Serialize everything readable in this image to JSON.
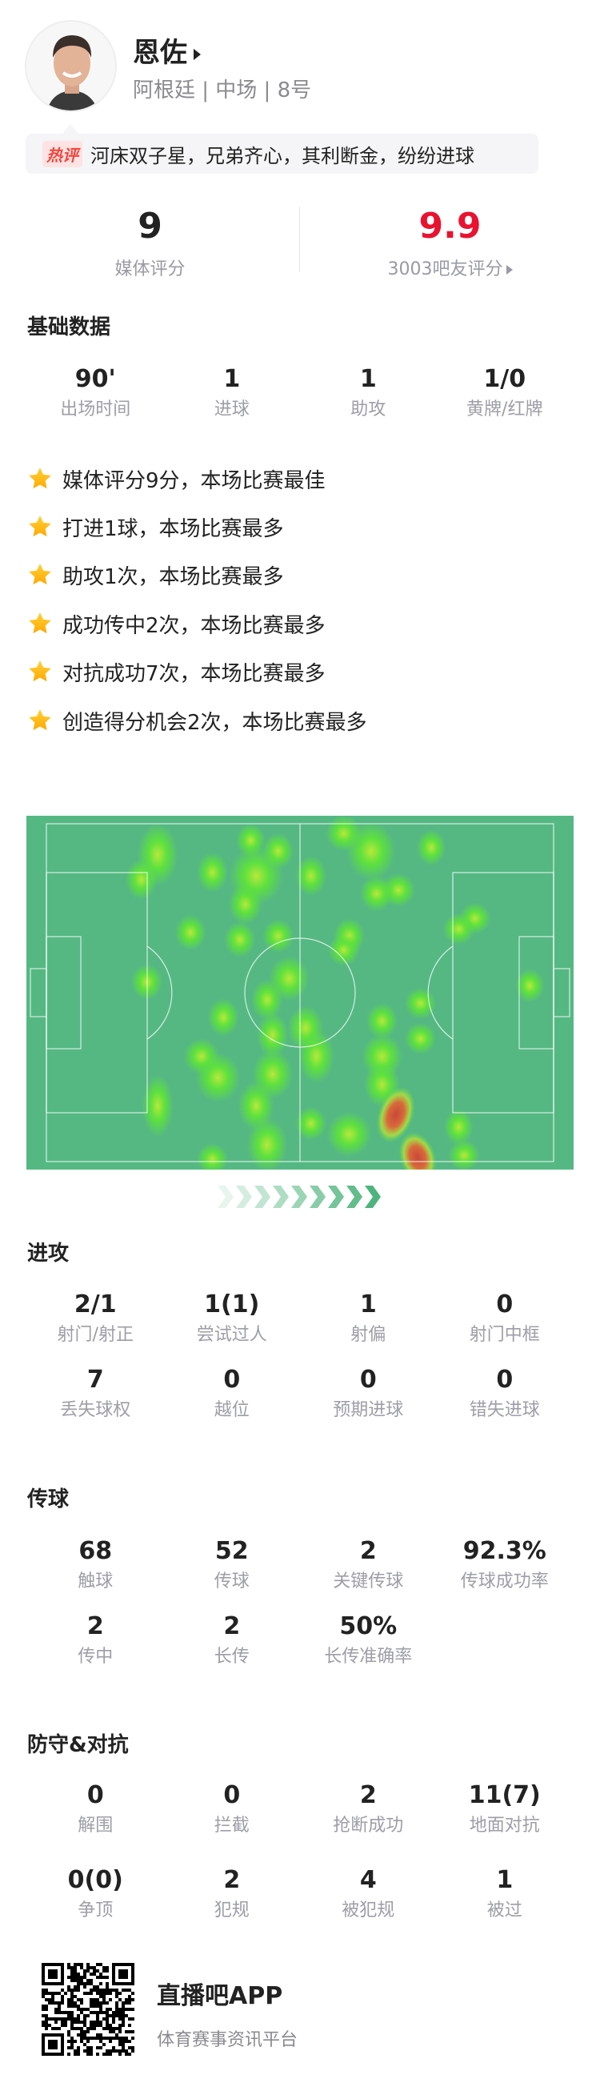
{
  "player": {
    "name": "恩佐",
    "info": "阿根廷 | 中场 | 8号"
  },
  "comment": {
    "badge": "热评",
    "text": "河床双子星，兄弟齐心，其利断金，纷纷进球"
  },
  "ratings": {
    "media_value": "9",
    "media_label": "媒体评分",
    "fan_value": "9.9",
    "fan_label": "3003吧友评分",
    "fan_color": "#e8132f"
  },
  "basic": {
    "title": "基础数据",
    "stats": [
      {
        "value": "90'",
        "label": "出场时间"
      },
      {
        "value": "1",
        "label": "进球"
      },
      {
        "value": "1",
        "label": "助攻"
      },
      {
        "value": "1/0",
        "label": "黄牌/红牌"
      }
    ]
  },
  "highlights": [
    "媒体评分9分，本场比赛最佳",
    "打进1球，本场比赛最多",
    "助攻1次，本场比赛最多",
    "成功传中2次，本场比赛最多",
    "对抗成功7次，本场比赛最多",
    "创造得分机会2次，本场比赛最多"
  ],
  "heatmap": {
    "pitch_color": "#55b883",
    "attack_direction": "right"
  },
  "attack": {
    "title": "进攻",
    "stats": [
      {
        "value": "2/1",
        "label": "射门/射正"
      },
      {
        "value": "1(1)",
        "label": "尝试过人"
      },
      {
        "value": "1",
        "label": "射偏"
      },
      {
        "value": "0",
        "label": "射门中框"
      },
      {
        "value": "7",
        "label": "丢失球权"
      },
      {
        "value": "0",
        "label": "越位"
      },
      {
        "value": "0",
        "label": "预期进球"
      },
      {
        "value": "0",
        "label": "错失进球"
      }
    ]
  },
  "passing": {
    "title": "传球",
    "stats": [
      {
        "value": "68",
        "label": "触球"
      },
      {
        "value": "52",
        "label": "传球"
      },
      {
        "value": "2",
        "label": "关键传球"
      },
      {
        "value": "92.3%",
        "label": "传球成功率"
      },
      {
        "value": "2",
        "label": "传中"
      },
      {
        "value": "2",
        "label": "长传"
      },
      {
        "value": "50%",
        "label": "长传准确率"
      }
    ]
  },
  "defense": {
    "title": "防守&对抗",
    "stats": [
      {
        "value": "0",
        "label": "解围"
      },
      {
        "value": "0",
        "label": "拦截"
      },
      {
        "value": "2",
        "label": "抢断成功"
      },
      {
        "value": "11(7)",
        "label": "地面对抗"
      },
      {
        "value": "0(0)",
        "label": "争顶"
      },
      {
        "value": "2",
        "label": "犯规"
      },
      {
        "value": "4",
        "label": "被犯规"
      },
      {
        "value": "1",
        "label": "被过"
      }
    ]
  },
  "footer": {
    "app_name": "直播吧APP",
    "tagline": "体育赛事资讯平台"
  }
}
